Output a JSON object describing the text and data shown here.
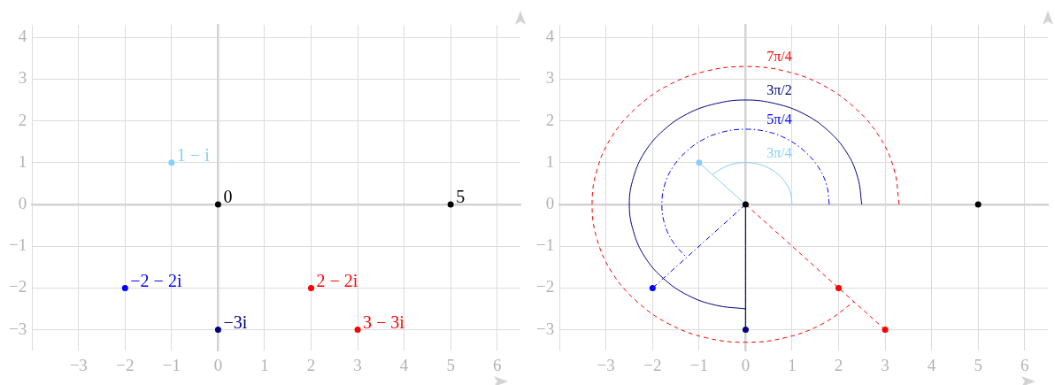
{
  "chart_data": [
    {
      "type": "scatter",
      "x": [
        0,
        5,
        -1,
        -2,
        0,
        2,
        3
      ],
      "values": [
        0,
        0,
        1,
        -2,
        -3,
        -2,
        -3
      ],
      "colors": [
        "#000000",
        "#000000",
        "#87cefa",
        "#0000ff",
        "#00007f",
        "#ff0000",
        "#ff0000"
      ],
      "annotations": [
        {
          "text": "0",
          "x": 0,
          "y": 0
        },
        {
          "text": "5",
          "x": 5,
          "y": 0
        },
        {
          "text": "1 − i",
          "x": -1,
          "y": 1
        },
        {
          "text": "−2 − 2i",
          "x": -2,
          "y": -2
        },
        {
          "text": "−3i",
          "x": 0,
          "y": -3
        },
        {
          "text": "2 − 2i",
          "x": 2,
          "y": -2
        },
        {
          "text": "3 − 3i",
          "x": 3,
          "y": -3
        }
      ],
      "xlim": [
        -4,
        6.5
      ],
      "xticks": [
        {
          "value": -4,
          "label": null
        },
        -3,
        -2,
        -1,
        0,
        1,
        2,
        3,
        4,
        5,
        6
      ],
      "ylim": [
        -3.5,
        4.3
      ],
      "yticks": [
        -3,
        -2,
        -1,
        0,
        1,
        2,
        3,
        4
      ],
      "grid": true
    },
    {
      "type": "scatter",
      "xlim": [
        -4,
        6.5
      ],
      "xticks": [
        {
          "value": -4,
          "label": null
        },
        -3,
        -2,
        -1,
        0,
        1,
        2,
        3,
        4,
        5,
        6
      ],
      "ylim": [
        -3.5,
        4.3
      ],
      "yticks": [
        -3,
        -2,
        -1,
        0,
        1,
        2,
        3,
        4
      ],
      "grid": true,
      "series": [
        {
          "type": "line",
          "x": [
            0,
            -1
          ],
          "values": [
            0,
            1
          ],
          "color": "#87cefa",
          "line_style": "solid"
        },
        {
          "type": "line",
          "x": [
            0,
            -2
          ],
          "values": [
            0,
            -2
          ],
          "color": "#0000ff",
          "line_style": "dashdot"
        },
        {
          "type": "line",
          "x": [
            0,
            0
          ],
          "values": [
            0,
            -3
          ],
          "color": "#00007f",
          "line_style": "solid"
        },
        {
          "type": "line",
          "x": [
            0,
            3
          ],
          "values": [
            0,
            -3
          ],
          "color": "#ff0000",
          "line_style": "dashed"
        },
        {
          "type": "line",
          "name": "3π/4",
          "color": "#87cefa",
          "line_style": "solid",
          "x": [
            1,
            0.97,
            0.87,
            0.71,
            0.5,
            0.26,
            0,
            -0.26,
            -0.5,
            -0.71
          ],
          "values": [
            0,
            0.26,
            0.5,
            0.71,
            0.87,
            0.97,
            1,
            0.97,
            0.87,
            0.71
          ]
        },
        {
          "type": "line",
          "name": "5π/4",
          "color": "#0000ff",
          "line_style": "dashdot",
          "x": [
            1.8,
            1.74,
            1.56,
            1.27,
            0.9,
            0.47,
            0,
            -0.47,
            -0.9,
            -1.27,
            -1.56,
            -1.74,
            -1.8,
            -1.74,
            -1.56,
            -1.27
          ],
          "values": [
            0,
            0.47,
            0.9,
            1.27,
            1.56,
            1.74,
            1.8,
            1.74,
            1.56,
            1.27,
            0.9,
            0.47,
            0,
            -0.47,
            -0.9,
            -1.27
          ]
        },
        {
          "type": "line",
          "name": "3π/2",
          "color": "#00007f",
          "line_style": "solid",
          "x": [
            2.5,
            2.41,
            2.17,
            1.77,
            1.25,
            0.65,
            0,
            -0.65,
            -1.25,
            -1.77,
            -2.17,
            -2.41,
            -2.5,
            -2.41,
            -2.17,
            -1.77,
            -1.25,
            -0.65,
            0
          ],
          "values": [
            0,
            0.65,
            1.25,
            1.77,
            2.17,
            2.41,
            2.5,
            2.41,
            2.17,
            1.77,
            1.25,
            0.65,
            0,
            -0.65,
            -1.25,
            -1.77,
            -2.17,
            -2.41,
            -2.5
          ]
        },
        {
          "type": "line",
          "name": "7π/4",
          "color": "#ff0000",
          "line_style": "dashed",
          "x": [
            3.3,
            3.19,
            2.86,
            2.33,
            1.65,
            0.85,
            0,
            -0.85,
            -1.65,
            -2.33,
            -2.86,
            -3.19,
            -3.3,
            -3.19,
            -2.86,
            -2.33,
            -1.65,
            -0.85,
            0,
            0.85,
            1.65,
            2.33
          ],
          "values": [
            0,
            0.85,
            1.65,
            2.33,
            2.86,
            3.19,
            3.3,
            3.19,
            2.86,
            2.33,
            1.65,
            0.85,
            0,
            -0.85,
            -1.65,
            -2.33,
            -2.86,
            -3.19,
            -3.3,
            -3.19,
            -2.86,
            -2.33
          ]
        },
        {
          "type": "scatter",
          "x": [
            0,
            5,
            -1,
            -2,
            0,
            2,
            3
          ],
          "values": [
            0,
            0,
            1,
            -2,
            -3,
            -2,
            -3
          ],
          "colors": [
            "#000000",
            "#000000",
            "#87cefa",
            "#0000ff",
            "#00007f",
            "#ff0000",
            "#ff0000"
          ]
        }
      ]
    }
  ]
}
